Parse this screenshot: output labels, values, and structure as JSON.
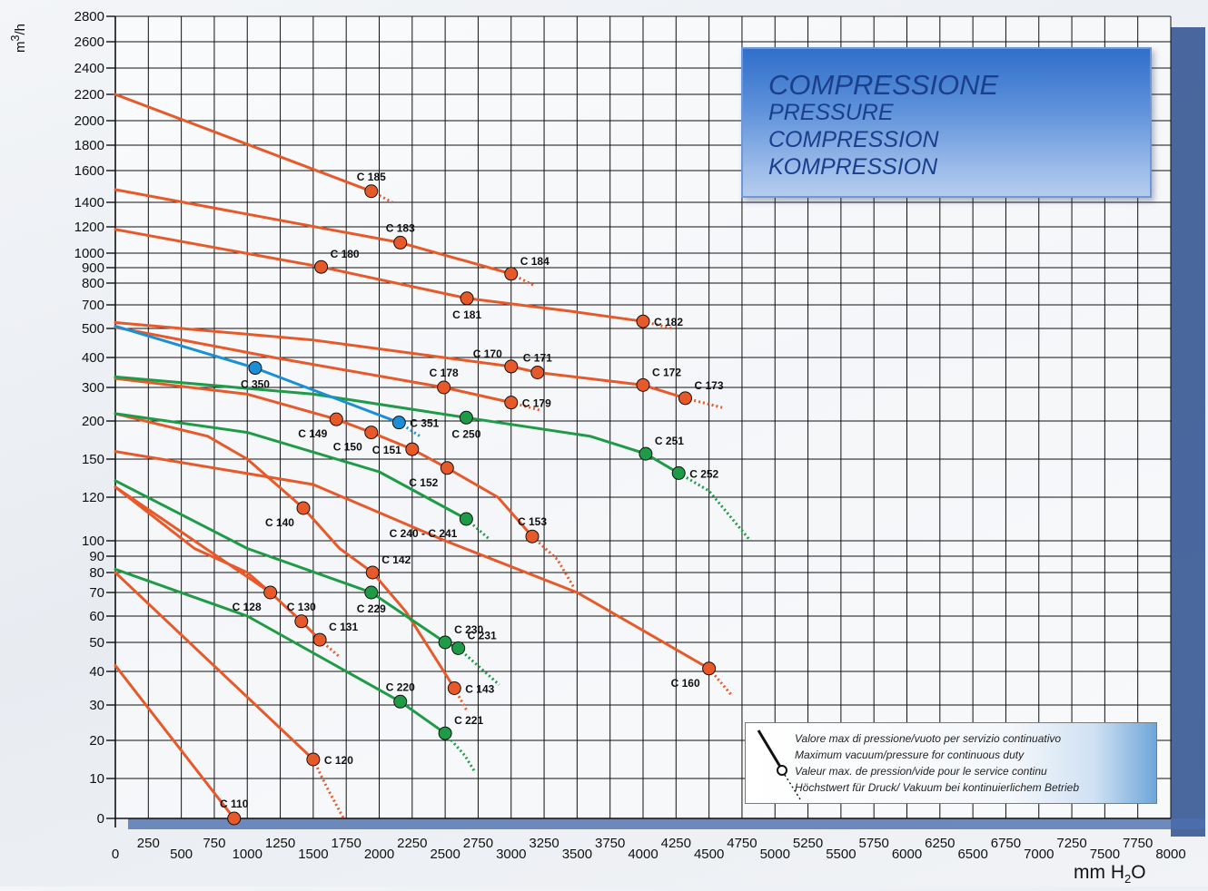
{
  "colors": {
    "orange": "#e8592a",
    "green": "#1e9b46",
    "blue": "#1a8fd6",
    "grid": "#111111",
    "title_text": "#1a3f8c"
  },
  "title": {
    "line1": "COMPRESSIONE",
    "line2": "PRESSURE",
    "line3": "COMPRESSION",
    "line4": "KOMPRESSION"
  },
  "legend": {
    "symbol": "max-continuous-duty-marker",
    "line1": "Valore max di pressione/vuoto per servizio continuativo",
    "line2": "Maximum vacuum/pressure for continuous duty",
    "line3": "Valeur max. de pression/vide pour le service continu",
    "line4": "Höchstwert für Druck/ Vakuum bei kontinuierlichem Betrieb"
  },
  "axes": {
    "y_unit_main": "m",
    "y_unit_sup": "3",
    "y_unit_tail": "/h",
    "x_unit_main": "mm H",
    "x_unit_sub": "2",
    "x_unit_tail": "O"
  },
  "chart_data": {
    "type": "line",
    "xlim": [
      0,
      8000
    ],
    "x_ticks": [
      0,
      250,
      500,
      750,
      1000,
      1250,
      1500,
      1750,
      2000,
      2250,
      2500,
      2750,
      3000,
      3250,
      3500,
      3750,
      4000,
      4250,
      4500,
      4750,
      5000,
      5250,
      5500,
      5750,
      6000,
      6250,
      6500,
      6750,
      7000,
      7250,
      7500,
      7750,
      8000
    ],
    "x_tick_labels": [
      "0",
      "250",
      "500",
      "750",
      "1000",
      "1250",
      "1500",
      "1750",
      "2000",
      "2250",
      "2500",
      "2750",
      "3000",
      "3250",
      "3500",
      "3750",
      "4000",
      "4250",
      "4500",
      "4750",
      "5000",
      "5250",
      "5500",
      "5750",
      "6000",
      "6250",
      "6500",
      "6750",
      "7000",
      "7250",
      "7500",
      "7750",
      "8000"
    ],
    "y_scale": "piecewise",
    "y_ticks": [
      0,
      10,
      20,
      30,
      40,
      50,
      60,
      70,
      80,
      90,
      100,
      120,
      150,
      200,
      300,
      400,
      500,
      700,
      800,
      900,
      1000,
      1200,
      1400,
      1600,
      1800,
      2000,
      2200,
      2400,
      2600,
      2800
    ],
    "y_tick_labels": [
      "0",
      "10",
      "20",
      "30",
      "40",
      "50",
      "60",
      "70",
      "80",
      "90",
      "100",
      "120",
      "150",
      "200",
      "300",
      "400",
      "500",
      "700",
      "800",
      "900",
      "1000",
      "1200",
      "1400",
      "1600",
      "1800",
      "2000",
      "2200",
      "2400",
      "2600",
      "2800"
    ],
    "grid": true,
    "series": [
      {
        "name": "C 110",
        "color": "orange",
        "points": [
          [
            0,
            42
          ],
          [
            900,
            0
          ]
        ],
        "dotted": []
      },
      {
        "name": "C 120",
        "color": "orange",
        "points": [
          [
            0,
            80
          ],
          [
            1500,
            15
          ]
        ],
        "dotted": [
          [
            1500,
            15
          ],
          [
            1600,
            8
          ],
          [
            1730,
            0
          ]
        ]
      },
      {
        "name": "C 128",
        "color": "orange",
        "points": [
          [
            0,
            128
          ],
          [
            1175,
            70
          ]
        ],
        "dotted": []
      },
      {
        "name": "C 130",
        "color": "orange",
        "points": [
          [
            0,
            128
          ],
          [
            600,
            95
          ],
          [
            1000,
            80
          ],
          [
            1175,
            70
          ],
          [
            1410,
            58
          ]
        ],
        "dotted": []
      },
      {
        "name": "C 131",
        "color": "orange",
        "points": [
          [
            1410,
            58
          ],
          [
            1550,
            51
          ]
        ],
        "dotted": [
          [
            1550,
            51
          ],
          [
            1700,
            45
          ]
        ]
      },
      {
        "name": "C 140",
        "color": "orange",
        "points": [
          [
            0,
            222
          ],
          [
            700,
            180
          ],
          [
            1000,
            150
          ],
          [
            1425,
            115
          ]
        ],
        "dotted": []
      },
      {
        "name": "C 142",
        "color": "orange",
        "points": [
          [
            1425,
            115
          ],
          [
            1700,
            95
          ],
          [
            1950,
            80
          ]
        ],
        "dotted": []
      },
      {
        "name": "C 143",
        "color": "orange",
        "points": [
          [
            1950,
            80
          ],
          [
            2200,
            62
          ],
          [
            2420,
            45
          ],
          [
            2570,
            35
          ]
        ],
        "dotted": [
          [
            2570,
            35
          ],
          [
            2670,
            28
          ]
        ]
      },
      {
        "name": "C 149",
        "color": "orange",
        "points": [
          [
            0,
            330
          ],
          [
            1000,
            280
          ],
          [
            1675,
            205
          ]
        ],
        "dotted": []
      },
      {
        "name": "C 150",
        "color": "orange",
        "points": [
          [
            1675,
            205
          ],
          [
            1940,
            185
          ]
        ],
        "dotted": []
      },
      {
        "name": "C 151",
        "color": "orange",
        "points": [
          [
            1940,
            185
          ],
          [
            2250,
            163
          ]
        ],
        "dotted": []
      },
      {
        "name": "C 152",
        "color": "orange",
        "points": [
          [
            2250,
            163
          ],
          [
            2515,
            143
          ]
        ],
        "dotted": []
      },
      {
        "name": "C 153",
        "color": "orange",
        "points": [
          [
            2515,
            143
          ],
          [
            2900,
            120
          ],
          [
            3160,
            102
          ]
        ],
        "dotted": [
          [
            3160,
            102
          ],
          [
            3350,
            88
          ],
          [
            3480,
            72
          ]
        ]
      },
      {
        "name": "C 160",
        "color": "orange",
        "points": [
          [
            0,
            160
          ],
          [
            1500,
            130
          ],
          [
            2500,
            100
          ],
          [
            3500,
            70
          ],
          [
            4500,
            41
          ]
        ],
        "dotted": [
          [
            4500,
            41
          ],
          [
            4670,
            33
          ]
        ]
      },
      {
        "name": "C 170",
        "color": "orange",
        "points": [
          [
            0,
            550
          ],
          [
            1500,
            460
          ],
          [
            3000,
            370
          ]
        ],
        "dotted": []
      },
      {
        "name": "C 171",
        "color": "orange",
        "points": [
          [
            3000,
            370
          ],
          [
            3200,
            350
          ]
        ],
        "dotted": []
      },
      {
        "name": "C 172",
        "color": "orange",
        "points": [
          [
            3200,
            350
          ],
          [
            4000,
            308
          ]
        ],
        "dotted": []
      },
      {
        "name": "C 173",
        "color": "orange",
        "points": [
          [
            4000,
            308
          ],
          [
            4320,
            268
          ]
        ],
        "dotted": [
          [
            4320,
            268
          ],
          [
            4600,
            240
          ]
        ]
      },
      {
        "name": "C 178",
        "color": "orange",
        "points": [
          [
            0,
            510
          ],
          [
            1200,
            400
          ],
          [
            2490,
            300
          ]
        ],
        "dotted": []
      },
      {
        "name": "C 179",
        "color": "orange",
        "points": [
          [
            2490,
            300
          ],
          [
            3000,
            255
          ]
        ],
        "dotted": [
          [
            3000,
            255
          ],
          [
            3220,
            232
          ]
        ]
      },
      {
        "name": "C 180",
        "color": "orange",
        "points": [
          [
            0,
            1180
          ],
          [
            1560,
            905
          ]
        ],
        "dotted": []
      },
      {
        "name": "C 181",
        "color": "orange",
        "points": [
          [
            1560,
            905
          ],
          [
            2665,
            730
          ]
        ],
        "dotted": []
      },
      {
        "name": "C 182",
        "color": "orange",
        "points": [
          [
            2665,
            730
          ],
          [
            3490,
            640
          ],
          [
            4000,
            560
          ]
        ],
        "dotted": [
          [
            4000,
            560
          ],
          [
            4220,
            500
          ]
        ]
      },
      {
        "name": "C 183",
        "color": "orange",
        "points": [
          [
            0,
            1480
          ],
          [
            2160,
            1080
          ]
        ],
        "dotted": []
      },
      {
        "name": "C 184",
        "color": "orange",
        "points": [
          [
            2160,
            1080
          ],
          [
            3000,
            860
          ]
        ],
        "dotted": [
          [
            3000,
            860
          ],
          [
            3170,
            790
          ]
        ]
      },
      {
        "name": "C 185",
        "color": "orange",
        "points": [
          [
            0,
            2200
          ],
          [
            1940,
            1470
          ]
        ],
        "dotted": [
          [
            1940,
            1470
          ],
          [
            2100,
            1400
          ]
        ]
      },
      {
        "name": "C 220",
        "color": "green",
        "points": [
          [
            0,
            82
          ],
          [
            1000,
            60
          ],
          [
            2160,
            31
          ]
        ],
        "dotted": []
      },
      {
        "name": "C 221",
        "color": "green",
        "points": [
          [
            2160,
            31
          ],
          [
            2500,
            22
          ]
        ],
        "dotted": [
          [
            2500,
            22
          ],
          [
            2650,
            16
          ],
          [
            2720,
            12
          ]
        ]
      },
      {
        "name": "C 229",
        "color": "green",
        "points": [
          [
            0,
            133
          ],
          [
            1000,
            95
          ],
          [
            1940,
            70
          ]
        ],
        "dotted": []
      },
      {
        "name": "C 230",
        "color": "green",
        "points": [
          [
            1940,
            70
          ],
          [
            2500,
            50
          ]
        ],
        "dotted": []
      },
      {
        "name": "C 231",
        "color": "green",
        "points": [
          [
            2500,
            50
          ],
          [
            2600,
            48
          ]
        ],
        "dotted": [
          [
            2600,
            48
          ],
          [
            2910,
            36
          ]
        ]
      },
      {
        "name": "C 240 - C 241",
        "color": "green",
        "points": [
          [
            0,
            222
          ],
          [
            1000,
            185
          ],
          [
            2000,
            140
          ],
          [
            2660,
            110
          ]
        ],
        "dotted": [
          [
            2660,
            110
          ],
          [
            2830,
            101
          ]
        ]
      },
      {
        "name": "C 250",
        "color": "green",
        "points": [
          [
            0,
            335
          ],
          [
            1500,
            280
          ],
          [
            2660,
            210
          ]
        ],
        "dotted": []
      },
      {
        "name": "C 251",
        "color": "green",
        "points": [
          [
            2660,
            210
          ],
          [
            3600,
            180
          ],
          [
            4020,
            157
          ]
        ],
        "dotted": []
      },
      {
        "name": "C 252",
        "color": "green",
        "points": [
          [
            4020,
            157
          ],
          [
            4270,
            139
          ]
        ],
        "dotted": [
          [
            4270,
            139
          ],
          [
            4500,
            125
          ],
          [
            4800,
            101
          ]
        ]
      },
      {
        "name": "C 350",
        "color": "blue",
        "points": [
          [
            0,
            520
          ],
          [
            1060,
            365
          ]
        ],
        "dotted": []
      },
      {
        "name": "C 351",
        "color": "blue",
        "points": [
          [
            1060,
            365
          ],
          [
            2150,
            198
          ]
        ],
        "dotted": [
          [
            2150,
            198
          ],
          [
            2310,
            180
          ]
        ]
      }
    ],
    "markers": [
      {
        "label": "C 110",
        "x": 900,
        "y": 0,
        "color": "orange",
        "label_pos": "above"
      },
      {
        "label": "C 120",
        "x": 1500,
        "y": 15,
        "color": "orange",
        "label_pos": "right"
      },
      {
        "label": "C 128",
        "x": 1175,
        "y": 70,
        "color": "orange",
        "label_pos": "below-left"
      },
      {
        "label": "C 130",
        "x": 1410,
        "y": 58,
        "color": "orange",
        "label_pos": "above"
      },
      {
        "label": "C 131",
        "x": 1550,
        "y": 51,
        "color": "orange",
        "label_pos": "above-right"
      },
      {
        "label": "C 140",
        "x": 1425,
        "y": 115,
        "color": "orange",
        "label_pos": "below-left"
      },
      {
        "label": "C 142",
        "x": 1950,
        "y": 80,
        "color": "orange",
        "label_pos": "above-right"
      },
      {
        "label": "C 143",
        "x": 2570,
        "y": 35,
        "color": "orange",
        "label_pos": "right"
      },
      {
        "label": "C 149",
        "x": 1675,
        "y": 205,
        "color": "orange",
        "label_pos": "below-left"
      },
      {
        "label": "C 150",
        "x": 1940,
        "y": 185,
        "color": "orange",
        "label_pos": "below-left"
      },
      {
        "label": "C 151",
        "x": 2250,
        "y": 163,
        "color": "orange",
        "label_pos": "left"
      },
      {
        "label": "C 152",
        "x": 2515,
        "y": 143,
        "color": "orange",
        "label_pos": "below-left"
      },
      {
        "label": "C 153",
        "x": 3160,
        "y": 102,
        "color": "orange",
        "label_pos": "above"
      },
      {
        "label": "C 160",
        "x": 4500,
        "y": 41,
        "color": "orange",
        "label_pos": "below-left"
      },
      {
        "label": "C 170",
        "x": 3000,
        "y": 370,
        "color": "orange",
        "label_pos": "above-left"
      },
      {
        "label": "C 171",
        "x": 3200,
        "y": 350,
        "color": "orange",
        "label_pos": "above"
      },
      {
        "label": "C 172",
        "x": 4000,
        "y": 308,
        "color": "orange",
        "label_pos": "above-right"
      },
      {
        "label": "C 173",
        "x": 4320,
        "y": 268,
        "color": "orange",
        "label_pos": "above-right"
      },
      {
        "label": "C 178",
        "x": 2490,
        "y": 300,
        "color": "orange",
        "label_pos": "above"
      },
      {
        "label": "C 179",
        "x": 3000,
        "y": 255,
        "color": "orange",
        "label_pos": "right"
      },
      {
        "label": "C 180",
        "x": 1560,
        "y": 905,
        "color": "orange",
        "label_pos": "above-right"
      },
      {
        "label": "C 181",
        "x": 2665,
        "y": 730,
        "color": "orange",
        "label_pos": "below"
      },
      {
        "label": "C 182",
        "x": 4000,
        "y": 560,
        "color": "orange",
        "label_pos": "right"
      },
      {
        "label": "C 183",
        "x": 2160,
        "y": 1080,
        "color": "orange",
        "label_pos": "above"
      },
      {
        "label": "C 184",
        "x": 3000,
        "y": 860,
        "color": "orange",
        "label_pos": "above-right"
      },
      {
        "label": "C 185",
        "x": 1940,
        "y": 1470,
        "color": "orange",
        "label_pos": "above"
      },
      {
        "label": "C 220",
        "x": 2160,
        "y": 31,
        "color": "green",
        "label_pos": "above"
      },
      {
        "label": "C 221",
        "x": 2500,
        "y": 22,
        "color": "green",
        "label_pos": "above-right"
      },
      {
        "label": "C 229",
        "x": 1940,
        "y": 70,
        "color": "green",
        "label_pos": "below"
      },
      {
        "label": "C 230",
        "x": 2500,
        "y": 50,
        "color": "green",
        "label_pos": "above-right"
      },
      {
        "label": "C 231",
        "x": 2600,
        "y": 48,
        "color": "green",
        "label_pos": "above-right"
      },
      {
        "label": "C 240 - C 241",
        "x": 2660,
        "y": 110,
        "color": "green",
        "label_pos": "below-left"
      },
      {
        "label": "C 250",
        "x": 2660,
        "y": 210,
        "color": "green",
        "label_pos": "below"
      },
      {
        "label": "C 251",
        "x": 4020,
        "y": 157,
        "color": "green",
        "label_pos": "above-right"
      },
      {
        "label": "C 252",
        "x": 4270,
        "y": 139,
        "color": "green",
        "label_pos": "right"
      },
      {
        "label": "C 350",
        "x": 1060,
        "y": 365,
        "color": "blue",
        "label_pos": "below"
      },
      {
        "label": "C 351",
        "x": 2150,
        "y": 198,
        "color": "blue",
        "label_pos": "right"
      }
    ]
  }
}
